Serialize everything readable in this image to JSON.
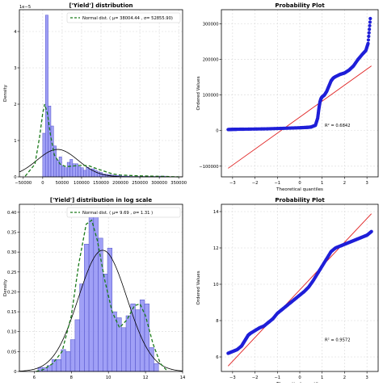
{
  "chart_data": [
    {
      "type": "bar",
      "title": "['Yield'] distribution",
      "xlabel": "",
      "ylabel": "Density",
      "y_offset_label": "1e−5",
      "xlim": [
        -60000,
        360000
      ],
      "ylim": [
        0,
        4.6
      ],
      "x_ticks": [
        -50000,
        0,
        50000,
        100000,
        150000,
        200000,
        250000,
        300000,
        350000
      ],
      "y_ticks": [
        0,
        1,
        2,
        3,
        4
      ],
      "grid": true,
      "legend_position": "top-right",
      "legend_entries": [
        "Normal dist. ($\\mu=$ 38004.44 and $\\sigma=$ 52855.90 )"
      ],
      "legend_text": "Normal dist. ( μ=  38004.44 ,  σ=  52855.90)",
      "bin_range": [
        0,
        315000
      ],
      "bin_width": 7000,
      "bar_heights_1e5": [
        1.2,
        4.45,
        1.95,
        1.4,
        0.85,
        0.45,
        0.55,
        0.3,
        0.25,
        0.4,
        0.48,
        0.36,
        0.36,
        0.28,
        0.25,
        0.18,
        0.26,
        0.22,
        0.22,
        0.18,
        0.14,
        0.12,
        0.08,
        0.07,
        0.06,
        0.05,
        0.04,
        0.04,
        0.03,
        0.02,
        0.02,
        0.02,
        0.01,
        0.01,
        0.01,
        0.01,
        0.01,
        0.01,
        0.01,
        0.01,
        0.01,
        0.01,
        0.01,
        0.02,
        0.02
      ],
      "normal_fit": {
        "mu": 38004.44,
        "sigma": 52855.9
      },
      "kde_points": [
        [
          -45000,
          0.02
        ],
        [
          -20000,
          0.35
        ],
        [
          -8000,
          1.1
        ],
        [
          0,
          1.75
        ],
        [
          5000,
          2.0
        ],
        [
          12000,
          1.75
        ],
        [
          20000,
          1.15
        ],
        [
          30000,
          0.6
        ],
        [
          45000,
          0.35
        ],
        [
          60000,
          0.28
        ],
        [
          80000,
          0.3
        ],
        [
          100000,
          0.32
        ],
        [
          120000,
          0.3
        ],
        [
          140000,
          0.22
        ],
        [
          160000,
          0.15
        ],
        [
          180000,
          0.08
        ],
        [
          200000,
          0.05
        ],
        [
          240000,
          0.03
        ],
        [
          280000,
          0.02
        ],
        [
          320000,
          0.01
        ],
        [
          350000,
          0.0
        ]
      ]
    },
    {
      "type": "scatter",
      "title": "Probability Plot",
      "xlabel": "Theoretical quantiles",
      "ylabel": "Ordered Values",
      "xlim": [
        -3.5,
        3.5
      ],
      "ylim": [
        -130000,
        340000
      ],
      "x_ticks": [
        -3,
        -2,
        -1,
        0,
        1,
        2,
        3
      ],
      "y_ticks": [
        -100000,
        0,
        100000,
        200000,
        300000
      ],
      "grid": true,
      "annotation": "R² = 0.6842",
      "fit_line": {
        "slope": 45000,
        "intercept": 38000
      },
      "points": [
        [
          -3.2,
          3000
        ],
        [
          -3.0,
          3500
        ],
        [
          -2.8,
          3800
        ],
        [
          -2.5,
          4000
        ],
        [
          -2.0,
          4500
        ],
        [
          -1.5,
          5000
        ],
        [
          -1.0,
          6000
        ],
        [
          -0.5,
          7000
        ],
        [
          0,
          8000
        ],
        [
          0.3,
          9000
        ],
        [
          0.5,
          10000
        ],
        [
          0.7,
          15000
        ],
        [
          0.8,
          35000
        ],
        [
          0.85,
          60000
        ],
        [
          0.9,
          80000
        ],
        [
          0.95,
          90000
        ],
        [
          1.0,
          95000
        ],
        [
          1.1,
          100000
        ],
        [
          1.2,
          110000
        ],
        [
          1.3,
          125000
        ],
        [
          1.4,
          140000
        ],
        [
          1.5,
          148000
        ],
        [
          1.6,
          152000
        ],
        [
          1.8,
          158000
        ],
        [
          2.0,
          162000
        ],
        [
          2.2,
          170000
        ],
        [
          2.4,
          182000
        ],
        [
          2.6,
          200000
        ],
        [
          2.8,
          215000
        ],
        [
          2.95,
          225000
        ],
        [
          3.05,
          245000
        ],
        [
          3.15,
          315000
        ]
      ]
    },
    {
      "type": "bar",
      "title": "['Yield'] distribution in log scale",
      "xlabel": "",
      "ylabel": "Density",
      "xlim": [
        5.2,
        14
      ],
      "ylim": [
        0,
        0.42
      ],
      "x_ticks": [
        6,
        8,
        10,
        12,
        14
      ],
      "y_ticks": [
        0.0,
        0.05,
        0.1,
        0.15,
        0.2,
        0.25,
        0.3,
        0.35,
        0.4
      ],
      "grid": true,
      "legend_position": "top-right",
      "legend_text": "Normal dist. ( μ=  9.69 ,  σ=  1.31 )",
      "bin_range": [
        6.2,
        12.75
      ],
      "bin_width": 0.25,
      "bar_heights": [
        0.01,
        0.01,
        0.015,
        0.03,
        0.03,
        0.055,
        0.05,
        0.08,
        0.13,
        0.22,
        0.32,
        0.395,
        0.4,
        0.335,
        0.245,
        0.31,
        0.15,
        0.135,
        0.11,
        0.14,
        0.17,
        0.155,
        0.18,
        0.17,
        0.06,
        0.02
      ],
      "normal_fit": {
        "mu": 9.69,
        "sigma": 1.31
      },
      "kde_points": [
        [
          6.1,
          0.0
        ],
        [
          6.5,
          0.005
        ],
        [
          7.0,
          0.02
        ],
        [
          7.5,
          0.05
        ],
        [
          8.0,
          0.14
        ],
        [
          8.4,
          0.27
        ],
        [
          8.8,
          0.37
        ],
        [
          9.1,
          0.38
        ],
        [
          9.4,
          0.33
        ],
        [
          9.8,
          0.23
        ],
        [
          10.2,
          0.15
        ],
        [
          10.6,
          0.11
        ],
        [
          11.0,
          0.13
        ],
        [
          11.4,
          0.165
        ],
        [
          11.7,
          0.17
        ],
        [
          12.0,
          0.14
        ],
        [
          12.4,
          0.07
        ],
        [
          12.8,
          0.02
        ],
        [
          13.2,
          0.0
        ]
      ]
    },
    {
      "type": "scatter",
      "title": "Probability Plot",
      "xlabel": "Theoretical quantiles",
      "ylabel": "Ordered Values",
      "xlim": [
        -3.5,
        3.5
      ],
      "ylim": [
        5.2,
        14.4
      ],
      "x_ticks": [
        -3,
        -2,
        -1,
        0,
        1,
        2,
        3
      ],
      "y_ticks": [
        6,
        8,
        10,
        12,
        14
      ],
      "grid": true,
      "annotation": "R² = 0.9572",
      "fit_line": {
        "slope": 1.31,
        "intercept": 9.69
      },
      "points": [
        [
          -3.2,
          6.2
        ],
        [
          -3.0,
          6.3
        ],
        [
          -2.8,
          6.4
        ],
        [
          -2.6,
          6.6
        ],
        [
          -2.5,
          6.8
        ],
        [
          -2.4,
          7.0
        ],
        [
          -2.3,
          7.2
        ],
        [
          -2.2,
          7.3
        ],
        [
          -2.0,
          7.45
        ],
        [
          -1.8,
          7.6
        ],
        [
          -1.6,
          7.7
        ],
        [
          -1.4,
          7.9
        ],
        [
          -1.2,
          8.1
        ],
        [
          -1.0,
          8.4
        ],
        [
          -0.8,
          8.6
        ],
        [
          -0.6,
          8.8
        ],
        [
          -0.4,
          9.0
        ],
        [
          -0.2,
          9.2
        ],
        [
          0,
          9.4
        ],
        [
          0.2,
          9.6
        ],
        [
          0.4,
          9.85
        ],
        [
          0.6,
          10.2
        ],
        [
          0.8,
          10.6
        ],
        [
          1.0,
          11.0
        ],
        [
          1.2,
          11.4
        ],
        [
          1.4,
          11.8
        ],
        [
          1.6,
          12.0
        ],
        [
          1.8,
          12.1
        ],
        [
          2.0,
          12.2
        ],
        [
          2.2,
          12.3
        ],
        [
          2.4,
          12.4
        ],
        [
          2.6,
          12.5
        ],
        [
          2.8,
          12.6
        ],
        [
          3.0,
          12.7
        ],
        [
          3.2,
          12.9
        ]
      ]
    }
  ]
}
